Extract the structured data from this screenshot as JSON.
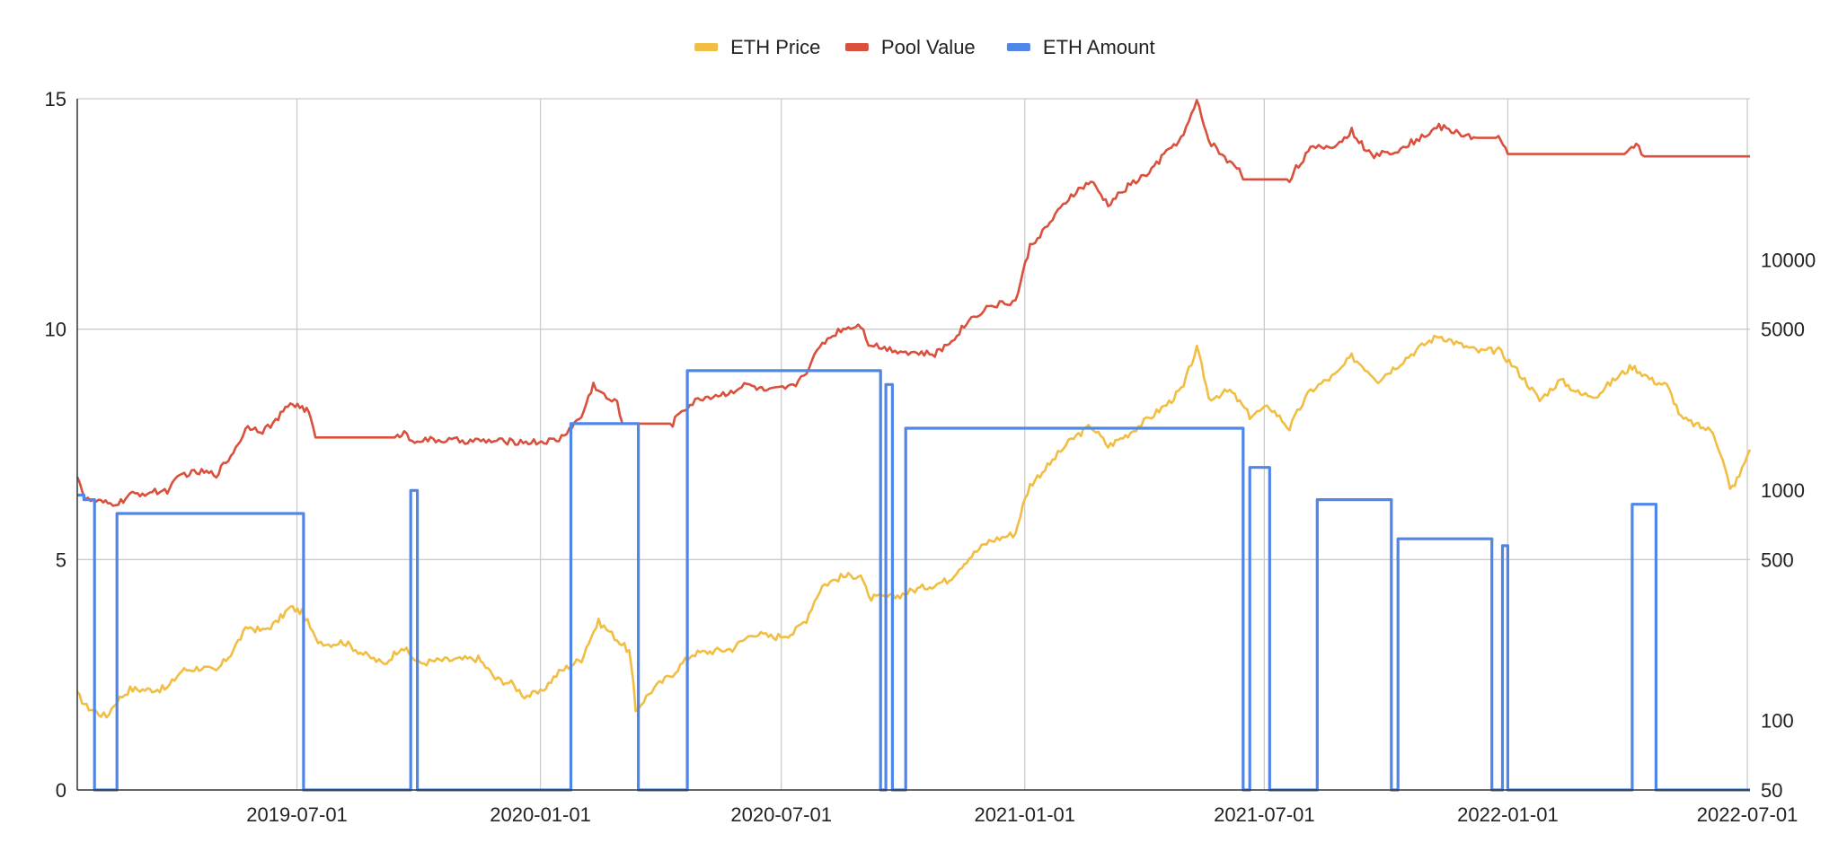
{
  "chart_data": {
    "type": "line",
    "title": "",
    "xlabel": "",
    "ylabel_left": "",
    "ylabel_right": "",
    "legend_position": "top-center",
    "grid": true,
    "x_range": [
      "2019-01-16",
      "2022-07-03"
    ],
    "x_ticks": [
      "2019-07-01",
      "2020-01-01",
      "2020-07-01",
      "2021-01-01",
      "2021-07-01",
      "2022-01-01",
      "2022-07-01"
    ],
    "y_left": {
      "range": [
        0,
        15
      ],
      "ticks": [
        0,
        5,
        10,
        15
      ],
      "scale": "linear"
    },
    "y_right": {
      "range": [
        50,
        50000
      ],
      "ticks": [
        50,
        100,
        500,
        1000,
        5000,
        10000
      ],
      "scale": "log"
    },
    "colors": {
      "eth_price": "#f1be42",
      "pool_value": "#d9503d",
      "eth_amount": "#4f86e8"
    },
    "series": [
      {
        "name": "ETH Price",
        "axis": "right",
        "color": "#f1be42",
        "points": [
          [
            "2019-01-16",
            130
          ],
          [
            "2019-01-23",
            115
          ],
          [
            "2019-02-01",
            108
          ],
          [
            "2019-02-07",
            104
          ],
          [
            "2019-02-15",
            122
          ],
          [
            "2019-02-25",
            137
          ],
          [
            "2019-03-10",
            136
          ],
          [
            "2019-03-25",
            138
          ],
          [
            "2019-04-05",
            165
          ],
          [
            "2019-04-20",
            170
          ],
          [
            "2019-05-01",
            163
          ],
          [
            "2019-05-12",
            195
          ],
          [
            "2019-05-25",
            255
          ],
          [
            "2019-06-05",
            245
          ],
          [
            "2019-06-15",
            265
          ],
          [
            "2019-06-26",
            310
          ],
          [
            "2019-07-05",
            295
          ],
          [
            "2019-07-15",
            225
          ],
          [
            "2019-07-25",
            215
          ],
          [
            "2019-08-05",
            220
          ],
          [
            "2019-08-20",
            195
          ],
          [
            "2019-09-05",
            175
          ],
          [
            "2019-09-18",
            210
          ],
          [
            "2019-10-01",
            177
          ],
          [
            "2019-10-15",
            182
          ],
          [
            "2019-11-01",
            184
          ],
          [
            "2019-11-15",
            186
          ],
          [
            "2019-11-28",
            152
          ],
          [
            "2019-12-10",
            145
          ],
          [
            "2019-12-20",
            128
          ],
          [
            "2020-01-01",
            132
          ],
          [
            "2020-01-15",
            162
          ],
          [
            "2020-02-01",
            185
          ],
          [
            "2020-02-14",
            268
          ],
          [
            "2020-02-28",
            225
          ],
          [
            "2020-03-08",
            200
          ],
          [
            "2020-03-13",
            110
          ],
          [
            "2020-03-25",
            135
          ],
          [
            "2020-04-10",
            160
          ],
          [
            "2020-04-25",
            195
          ],
          [
            "2020-05-10",
            200
          ],
          [
            "2020-05-25",
            205
          ],
          [
            "2020-06-10",
            240
          ],
          [
            "2020-06-25",
            230
          ],
          [
            "2020-07-10",
            240
          ],
          [
            "2020-07-20",
            275
          ],
          [
            "2020-08-01",
            385
          ],
          [
            "2020-08-15",
            420
          ],
          [
            "2020-08-30",
            430
          ],
          [
            "2020-09-05",
            340
          ],
          [
            "2020-09-25",
            345
          ],
          [
            "2020-10-10",
            370
          ],
          [
            "2020-10-25",
            390
          ],
          [
            "2020-11-05",
            410
          ],
          [
            "2020-11-20",
            510
          ],
          [
            "2020-12-05",
            600
          ],
          [
            "2020-12-25",
            650
          ],
          [
            "2021-01-05",
            1050
          ],
          [
            "2021-01-20",
            1300
          ],
          [
            "2021-02-05",
            1650
          ],
          [
            "2021-02-20",
            1900
          ],
          [
            "2021-03-05",
            1550
          ],
          [
            "2021-03-20",
            1750
          ],
          [
            "2021-04-05",
            2050
          ],
          [
            "2021-04-20",
            2400
          ],
          [
            "2021-05-01",
            2800
          ],
          [
            "2021-05-11",
            4100
          ],
          [
            "2021-05-20",
            2500
          ],
          [
            "2021-06-05",
            2700
          ],
          [
            "2021-06-20",
            2100
          ],
          [
            "2021-07-05",
            2300
          ],
          [
            "2021-07-20",
            1850
          ],
          [
            "2021-08-05",
            2700
          ],
          [
            "2021-08-25",
            3200
          ],
          [
            "2021-09-05",
            3800
          ],
          [
            "2021-09-25",
            3000
          ],
          [
            "2021-10-10",
            3500
          ],
          [
            "2021-10-30",
            4300
          ],
          [
            "2021-11-10",
            4700
          ],
          [
            "2021-11-25",
            4300
          ],
          [
            "2021-12-10",
            4000
          ],
          [
            "2021-12-25",
            4050
          ],
          [
            "2022-01-10",
            3200
          ],
          [
            "2022-01-25",
            2450
          ],
          [
            "2022-02-10",
            3000
          ],
          [
            "2022-02-25",
            2600
          ],
          [
            "2022-03-10",
            2600
          ],
          [
            "2022-03-25",
            3100
          ],
          [
            "2022-04-05",
            3450
          ],
          [
            "2022-04-20",
            3000
          ],
          [
            "2022-05-01",
            2850
          ],
          [
            "2022-05-12",
            2050
          ],
          [
            "2022-05-25",
            1900
          ],
          [
            "2022-06-05",
            1800
          ],
          [
            "2022-06-18",
            1000
          ],
          [
            "2022-06-25",
            1150
          ],
          [
            "2022-07-03",
            1500
          ]
        ]
      },
      {
        "name": "Pool Value",
        "axis": "left",
        "color": "#d9503d",
        "points": [
          [
            "2019-01-16",
            6.85
          ],
          [
            "2019-01-22",
            6.3
          ],
          [
            "2019-02-01",
            6.25
          ],
          [
            "2019-02-10",
            6.2
          ],
          [
            "2019-02-18",
            6.25
          ],
          [
            "2019-02-25",
            6.4
          ],
          [
            "2019-03-10",
            6.45
          ],
          [
            "2019-03-25",
            6.5
          ],
          [
            "2019-04-05",
            6.85
          ],
          [
            "2019-04-20",
            6.9
          ],
          [
            "2019-05-01",
            6.85
          ],
          [
            "2019-05-12",
            7.25
          ],
          [
            "2019-05-25",
            7.9
          ],
          [
            "2019-06-05",
            7.8
          ],
          [
            "2019-06-15",
            8.0
          ],
          [
            "2019-06-26",
            8.4
          ],
          [
            "2019-07-05",
            8.3
          ],
          [
            "2019-07-10",
            8.2
          ],
          [
            "2019-07-15",
            7.65
          ],
          [
            "2019-09-15",
            7.65
          ],
          [
            "2019-09-20",
            7.8
          ],
          [
            "2019-09-24",
            7.6
          ],
          [
            "2019-12-31",
            7.55
          ],
          [
            "2020-01-15",
            7.6
          ],
          [
            "2020-01-25",
            7.9
          ],
          [
            "2020-02-01",
            8.1
          ],
          [
            "2020-02-10",
            8.8
          ],
          [
            "2020-02-20",
            8.5
          ],
          [
            "2020-02-28",
            8.4
          ],
          [
            "2020-03-03",
            7.95
          ],
          [
            "2020-04-10",
            7.95
          ],
          [
            "2020-04-15",
            8.2
          ],
          [
            "2020-05-01",
            8.5
          ],
          [
            "2020-05-20",
            8.6
          ],
          [
            "2020-06-05",
            8.8
          ],
          [
            "2020-06-20",
            8.65
          ],
          [
            "2020-07-10",
            8.75
          ],
          [
            "2020-07-20",
            9.1
          ],
          [
            "2020-08-01",
            9.7
          ],
          [
            "2020-08-15",
            10.0
          ],
          [
            "2020-08-30",
            10.1
          ],
          [
            "2020-09-05",
            9.7
          ],
          [
            "2020-09-15",
            9.6
          ],
          [
            "2020-10-05",
            9.5
          ],
          [
            "2020-10-25",
            9.45
          ],
          [
            "2020-11-05",
            9.7
          ],
          [
            "2020-11-20",
            10.2
          ],
          [
            "2020-12-05",
            10.5
          ],
          [
            "2020-12-25",
            10.6
          ],
          [
            "2021-01-05",
            11.8
          ],
          [
            "2021-01-20",
            12.3
          ],
          [
            "2021-02-05",
            12.9
          ],
          [
            "2021-02-20",
            13.2
          ],
          [
            "2021-03-05",
            12.7
          ],
          [
            "2021-03-20",
            13.1
          ],
          [
            "2021-04-05",
            13.4
          ],
          [
            "2021-04-20",
            13.9
          ],
          [
            "2021-05-01",
            14.2
          ],
          [
            "2021-05-11",
            14.95
          ],
          [
            "2021-05-20",
            14.1
          ],
          [
            "2021-06-05",
            13.6
          ],
          [
            "2021-06-12",
            13.5
          ],
          [
            "2021-06-15",
            13.25
          ],
          [
            "2021-07-20",
            13.25
          ],
          [
            "2021-07-25",
            13.5
          ],
          [
            "2021-08-05",
            13.9
          ],
          [
            "2021-08-25",
            14.0
          ],
          [
            "2021-09-05",
            14.3
          ],
          [
            "2021-09-20",
            13.75
          ],
          [
            "2021-10-10",
            13.9
          ],
          [
            "2021-10-30",
            14.2
          ],
          [
            "2021-11-10",
            14.4
          ],
          [
            "2021-11-25",
            14.25
          ],
          [
            "2021-12-10",
            14.15
          ],
          [
            "2021-12-25",
            14.15
          ],
          [
            "2022-01-01",
            13.8
          ],
          [
            "2022-04-01",
            13.8
          ],
          [
            "2022-04-08",
            14.05
          ],
          [
            "2022-04-14",
            13.75
          ],
          [
            "2022-07-03",
            13.75
          ]
        ]
      },
      {
        "name": "ETH Amount",
        "axis": "left",
        "color": "#4f86e8",
        "step": true,
        "points": [
          [
            "2019-01-16",
            6.4
          ],
          [
            "2019-01-21",
            6.4
          ],
          [
            "2019-01-21",
            6.3
          ],
          [
            "2019-01-29",
            6.3
          ],
          [
            "2019-01-29",
            0
          ],
          [
            "2019-02-15",
            0
          ],
          [
            "2019-02-15",
            6.0
          ],
          [
            "2019-07-06",
            6.0
          ],
          [
            "2019-07-06",
            0
          ],
          [
            "2019-09-25",
            0
          ],
          [
            "2019-09-25",
            6.5
          ],
          [
            "2019-09-30",
            6.5
          ],
          [
            "2019-09-30",
            0
          ],
          [
            "2020-01-24",
            0
          ],
          [
            "2020-01-24",
            7.95
          ],
          [
            "2020-03-15",
            7.95
          ],
          [
            "2020-03-15",
            0
          ],
          [
            "2020-04-21",
            0
          ],
          [
            "2020-04-21",
            9.1
          ],
          [
            "2020-09-14",
            9.1
          ],
          [
            "2020-09-14",
            0
          ],
          [
            "2020-09-18",
            0
          ],
          [
            "2020-09-18",
            8.8
          ],
          [
            "2020-09-23",
            8.8
          ],
          [
            "2020-09-23",
            0
          ],
          [
            "2020-10-03",
            0
          ],
          [
            "2020-10-03",
            7.85
          ],
          [
            "2021-06-15",
            7.85
          ],
          [
            "2021-06-15",
            0
          ],
          [
            "2021-06-20",
            0
          ],
          [
            "2021-06-20",
            7.0
          ],
          [
            "2021-07-05",
            7.0
          ],
          [
            "2021-07-05",
            0
          ],
          [
            "2021-08-10",
            0
          ],
          [
            "2021-08-10",
            6.3
          ],
          [
            "2021-10-05",
            6.3
          ],
          [
            "2021-10-05",
            0
          ],
          [
            "2021-10-10",
            0
          ],
          [
            "2021-10-10",
            5.45
          ],
          [
            "2021-12-20",
            5.45
          ],
          [
            "2021-12-20",
            0
          ],
          [
            "2021-12-28",
            0
          ],
          [
            "2021-12-28",
            5.3
          ],
          [
            "2022-01-01",
            5.3
          ],
          [
            "2022-01-01",
            0
          ],
          [
            "2022-04-05",
            0
          ],
          [
            "2022-04-05",
            6.2
          ],
          [
            "2022-04-23",
            6.2
          ],
          [
            "2022-04-23",
            0
          ],
          [
            "2022-07-03",
            0
          ]
        ]
      }
    ]
  }
}
